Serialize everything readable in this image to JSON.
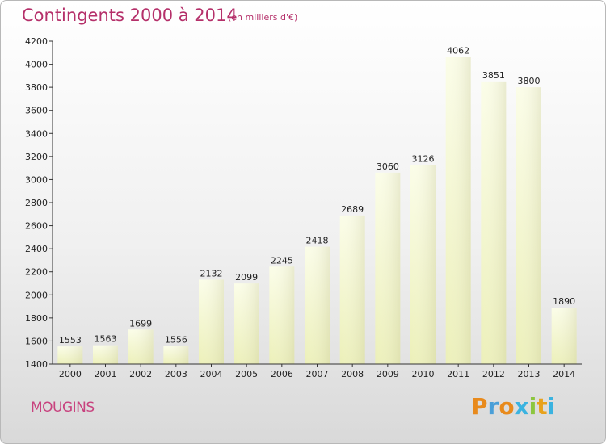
{
  "header": {
    "title": "Contingents 2000 à 2014",
    "subtitle": "(en milliers d'€)"
  },
  "footer": {
    "city": "MOUGINS",
    "logo_text": "Proxiti"
  },
  "colors": {
    "title": "#b5306a",
    "bar_light": "#fbfde8",
    "bar_dark": "#ecf0b8",
    "axis": "#333333"
  },
  "chart_data": {
    "type": "bar",
    "title": "Contingents 2000 à 2014",
    "subtitle": "(en milliers d'€)",
    "xlabel": "",
    "ylabel": "",
    "categories": [
      "2000",
      "2001",
      "2002",
      "2003",
      "2004",
      "2005",
      "2006",
      "2007",
      "2008",
      "2009",
      "2010",
      "2011",
      "2012",
      "2013",
      "2014"
    ],
    "values": [
      1553,
      1563,
      1699,
      1556,
      2132,
      2099,
      2245,
      2418,
      2689,
      3060,
      3126,
      4062,
      3851,
      3800,
      1890
    ],
    "ylim": [
      1400,
      4200
    ],
    "yticks": [
      1400,
      1600,
      1800,
      2000,
      2200,
      2400,
      2600,
      2800,
      3000,
      3200,
      3400,
      3600,
      3800,
      4000,
      4200
    ],
    "grid": false,
    "data_labels": true
  }
}
